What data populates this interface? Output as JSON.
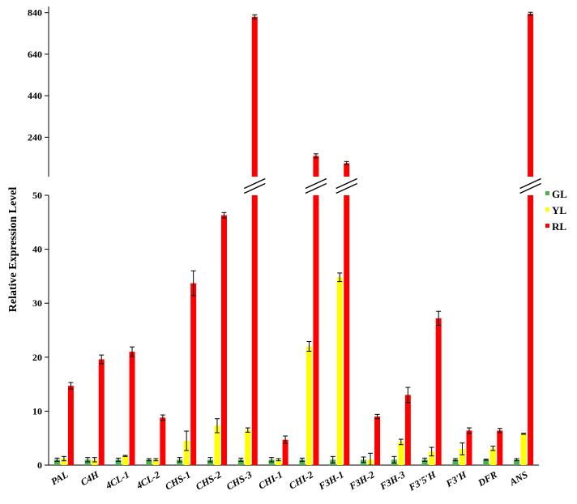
{
  "chart_data": {
    "type": "bar",
    "ylabel": "Relative Expression Level",
    "categories": [
      "PAL",
      "C4H",
      "4CL-1",
      "4CL-2",
      "CHS-1",
      "CHS-2",
      "CHS-3",
      "CHI-1",
      "CHI-2",
      "F3H-1",
      "F3H-2",
      "F3H-3",
      "F3'5'H",
      "F3'H",
      "DFR",
      "ANS"
    ],
    "series": [
      {
        "name": "GL",
        "color": "#4caf50",
        "values": [
          1.0,
          1.0,
          1.0,
          1.0,
          1.0,
          1.0,
          1.0,
          1.0,
          1.0,
          1.0,
          1.0,
          1.0,
          1.0,
          1.0,
          1.0,
          1.0
        ],
        "errors": [
          0.3,
          0.4,
          0.3,
          0.2,
          0.4,
          0.4,
          0.3,
          0.4,
          0.3,
          0.6,
          0.5,
          0.6,
          0.3,
          0.2,
          0.1,
          0.2
        ]
      },
      {
        "name": "YL",
        "color": "#ffff00",
        "values": [
          1.2,
          1.0,
          1.7,
          1.0,
          4.5,
          7.3,
          6.5,
          1.0,
          22.0,
          34.8,
          1.0,
          4.3,
          2.5,
          3.0,
          3.1,
          5.8
        ],
        "errors": [
          0.4,
          0.4,
          0.1,
          0.2,
          1.8,
          1.3,
          0.4,
          0.2,
          0.9,
          0.8,
          1.2,
          0.5,
          0.8,
          1.1,
          0.4,
          0.1
        ]
      },
      {
        "name": "RL",
        "color": "#ff0000",
        "values": [
          14.7,
          19.6,
          21.0,
          8.8,
          33.7,
          46.3,
          820,
          4.7,
          150,
          115,
          9.0,
          13.0,
          27.2,
          6.4,
          6.4,
          835
        ],
        "errors": [
          0.6,
          0.8,
          0.9,
          0.5,
          2.3,
          0.5,
          10,
          0.7,
          10,
          8,
          0.4,
          1.4,
          1.3,
          0.5,
          0.4,
          7
        ]
      }
    ],
    "axis_break": true,
    "lower_ylim": [
      0,
      50
    ],
    "lower_yticks": [
      0,
      10,
      20,
      30,
      40,
      50
    ],
    "upper_ylim": [
      50,
      870
    ],
    "upper_yticks": [
      240,
      440,
      640,
      840
    ],
    "legend": "right"
  }
}
